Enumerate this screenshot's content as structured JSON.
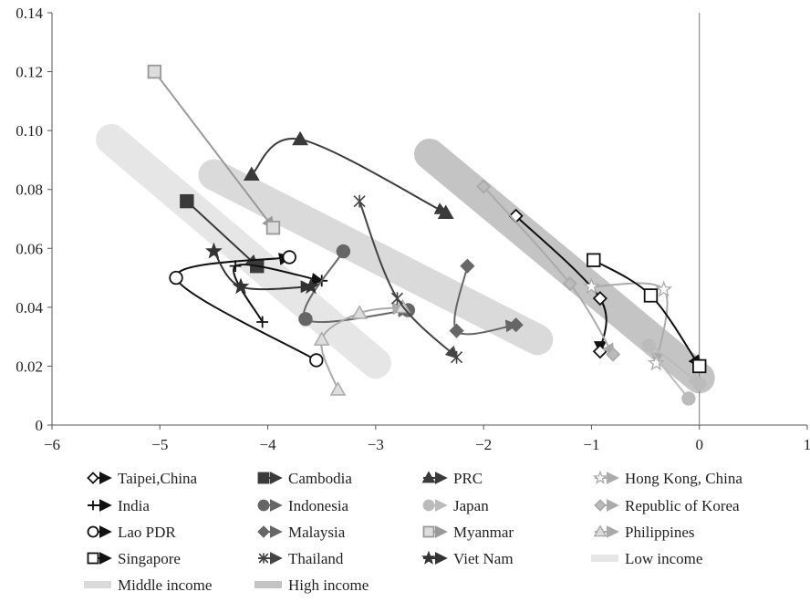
{
  "chart_data": {
    "type": "line",
    "title": "",
    "xlabel": "",
    "ylabel": "",
    "xlim": [
      -6,
      1
    ],
    "ylim": [
      0,
      0.14
    ],
    "x_ticks": [
      "−6",
      "−5",
      "−4",
      "−3",
      "−2",
      "−1",
      "0",
      "1"
    ],
    "y_ticks": [
      "0",
      "0.02",
      "0.04",
      "0.06",
      "0.08",
      "0.10",
      "0.12",
      "0.14"
    ],
    "x_tick_values": [
      -6,
      -5,
      -4,
      -3,
      -2,
      -1,
      0,
      1
    ],
    "y_tick_values": [
      0,
      0.02,
      0.04,
      0.06,
      0.08,
      0.1,
      0.12,
      0.14
    ],
    "grid": false,
    "vertical_reference_line_x": 0,
    "legend_position": "bottom",
    "bands": [
      {
        "name": "Low income",
        "color": "#e6e6e6",
        "points": [
          [
            -5.45,
            0.097
          ],
          [
            -3.0,
            0.021
          ]
        ]
      },
      {
        "name": "Middle income",
        "color": "#dadada",
        "points": [
          [
            -4.5,
            0.085
          ],
          [
            -1.5,
            0.029
          ]
        ]
      },
      {
        "name": "High income",
        "color": "#c4c4c4",
        "points": [
          [
            -2.5,
            0.092
          ],
          [
            0.0,
            0.016
          ]
        ]
      }
    ],
    "series": [
      {
        "name": "Taipei,China",
        "marker": "diamond",
        "fill": "#ffffff",
        "color": "#111111",
        "points": [
          [
            -1.7,
            0.071
          ],
          [
            -0.92,
            0.043
          ],
          [
            -0.92,
            0.025
          ]
        ]
      },
      {
        "name": "Cambodia",
        "marker": "square",
        "fill": "#3a3a3a",
        "color": "#3a3a3a",
        "points": [
          [
            -4.75,
            0.076
          ],
          [
            -4.1,
            0.054
          ]
        ]
      },
      {
        "name": "PRC",
        "marker": "triangle",
        "fill": "#3a3a3a",
        "color": "#3a3a3a",
        "points": [
          [
            -4.15,
            0.085
          ],
          [
            -3.7,
            0.097
          ],
          [
            -2.35,
            0.072
          ]
        ]
      },
      {
        "name": "Hong Kong, China",
        "marker": "star",
        "fill": "#ffffff",
        "color": "#aaaaaa",
        "points": [
          [
            -1.0,
            0.047
          ],
          [
            -0.33,
            0.046
          ],
          [
            -0.4,
            0.021
          ]
        ]
      },
      {
        "name": "India",
        "marker": "plus",
        "fill": "#111111",
        "color": "#111111",
        "points": [
          [
            -4.05,
            0.035
          ],
          [
            -4.3,
            0.054
          ],
          [
            -3.5,
            0.049
          ]
        ]
      },
      {
        "name": "Indonesia",
        "marker": "circle",
        "fill": "#666666",
        "color": "#666666",
        "points": [
          [
            -3.3,
            0.059
          ],
          [
            -3.65,
            0.036
          ],
          [
            -2.7,
            0.039
          ]
        ]
      },
      {
        "name": "Japan",
        "marker": "circle",
        "fill": "#bbbbbb",
        "color": "#bbbbbb",
        "points": [
          [
            -0.1,
            0.009
          ],
          [
            -0.47,
            0.027
          ],
          [
            0.0,
            0.014
          ]
        ]
      },
      {
        "name": "Republic of Korea",
        "marker": "diamond",
        "fill": "#bbbbbb",
        "color": "#aaaaaa",
        "points": [
          [
            -2.0,
            0.081
          ],
          [
            -1.2,
            0.048
          ],
          [
            -0.8,
            0.024
          ]
        ]
      },
      {
        "name": "Lao PDR",
        "marker": "circle",
        "fill": "#ffffff",
        "color": "#111111",
        "points": [
          [
            -3.55,
            0.022
          ],
          [
            -4.85,
            0.05
          ],
          [
            -3.8,
            0.057
          ]
        ]
      },
      {
        "name": "Malaysia",
        "marker": "diamond",
        "fill": "#666666",
        "color": "#666666",
        "points": [
          [
            -2.15,
            0.054
          ],
          [
            -2.25,
            0.032
          ],
          [
            -1.7,
            0.034
          ]
        ]
      },
      {
        "name": "Myanmar",
        "marker": "square",
        "fill": "#dddddd",
        "color": "#999999",
        "points": [
          [
            -5.05,
            0.12
          ],
          [
            -3.95,
            0.067
          ]
        ]
      },
      {
        "name": "Philippines",
        "marker": "triangle",
        "fill": "#dddddd",
        "color": "#aaaaaa",
        "points": [
          [
            -3.35,
            0.012
          ],
          [
            -3.5,
            0.029
          ],
          [
            -3.15,
            0.038
          ],
          [
            -2.75,
            0.04
          ]
        ]
      },
      {
        "name": "Singapore",
        "marker": "square",
        "fill": "#ffffff",
        "color": "#111111",
        "points": [
          [
            -0.98,
            0.056
          ],
          [
            -0.45,
            0.044
          ],
          [
            0.0,
            0.02
          ]
        ]
      },
      {
        "name": "Thailand",
        "marker": "xstar",
        "fill": "#444444",
        "color": "#444444",
        "points": [
          [
            -3.15,
            0.076
          ],
          [
            -2.8,
            0.043
          ],
          [
            -2.25,
            0.023
          ]
        ]
      },
      {
        "name": "Viet Nam",
        "marker": "star",
        "fill": "#333333",
        "color": "#333333",
        "points": [
          [
            -4.5,
            0.059
          ],
          [
            -4.25,
            0.047
          ],
          [
            -3.6,
            0.047
          ]
        ]
      }
    ]
  }
}
